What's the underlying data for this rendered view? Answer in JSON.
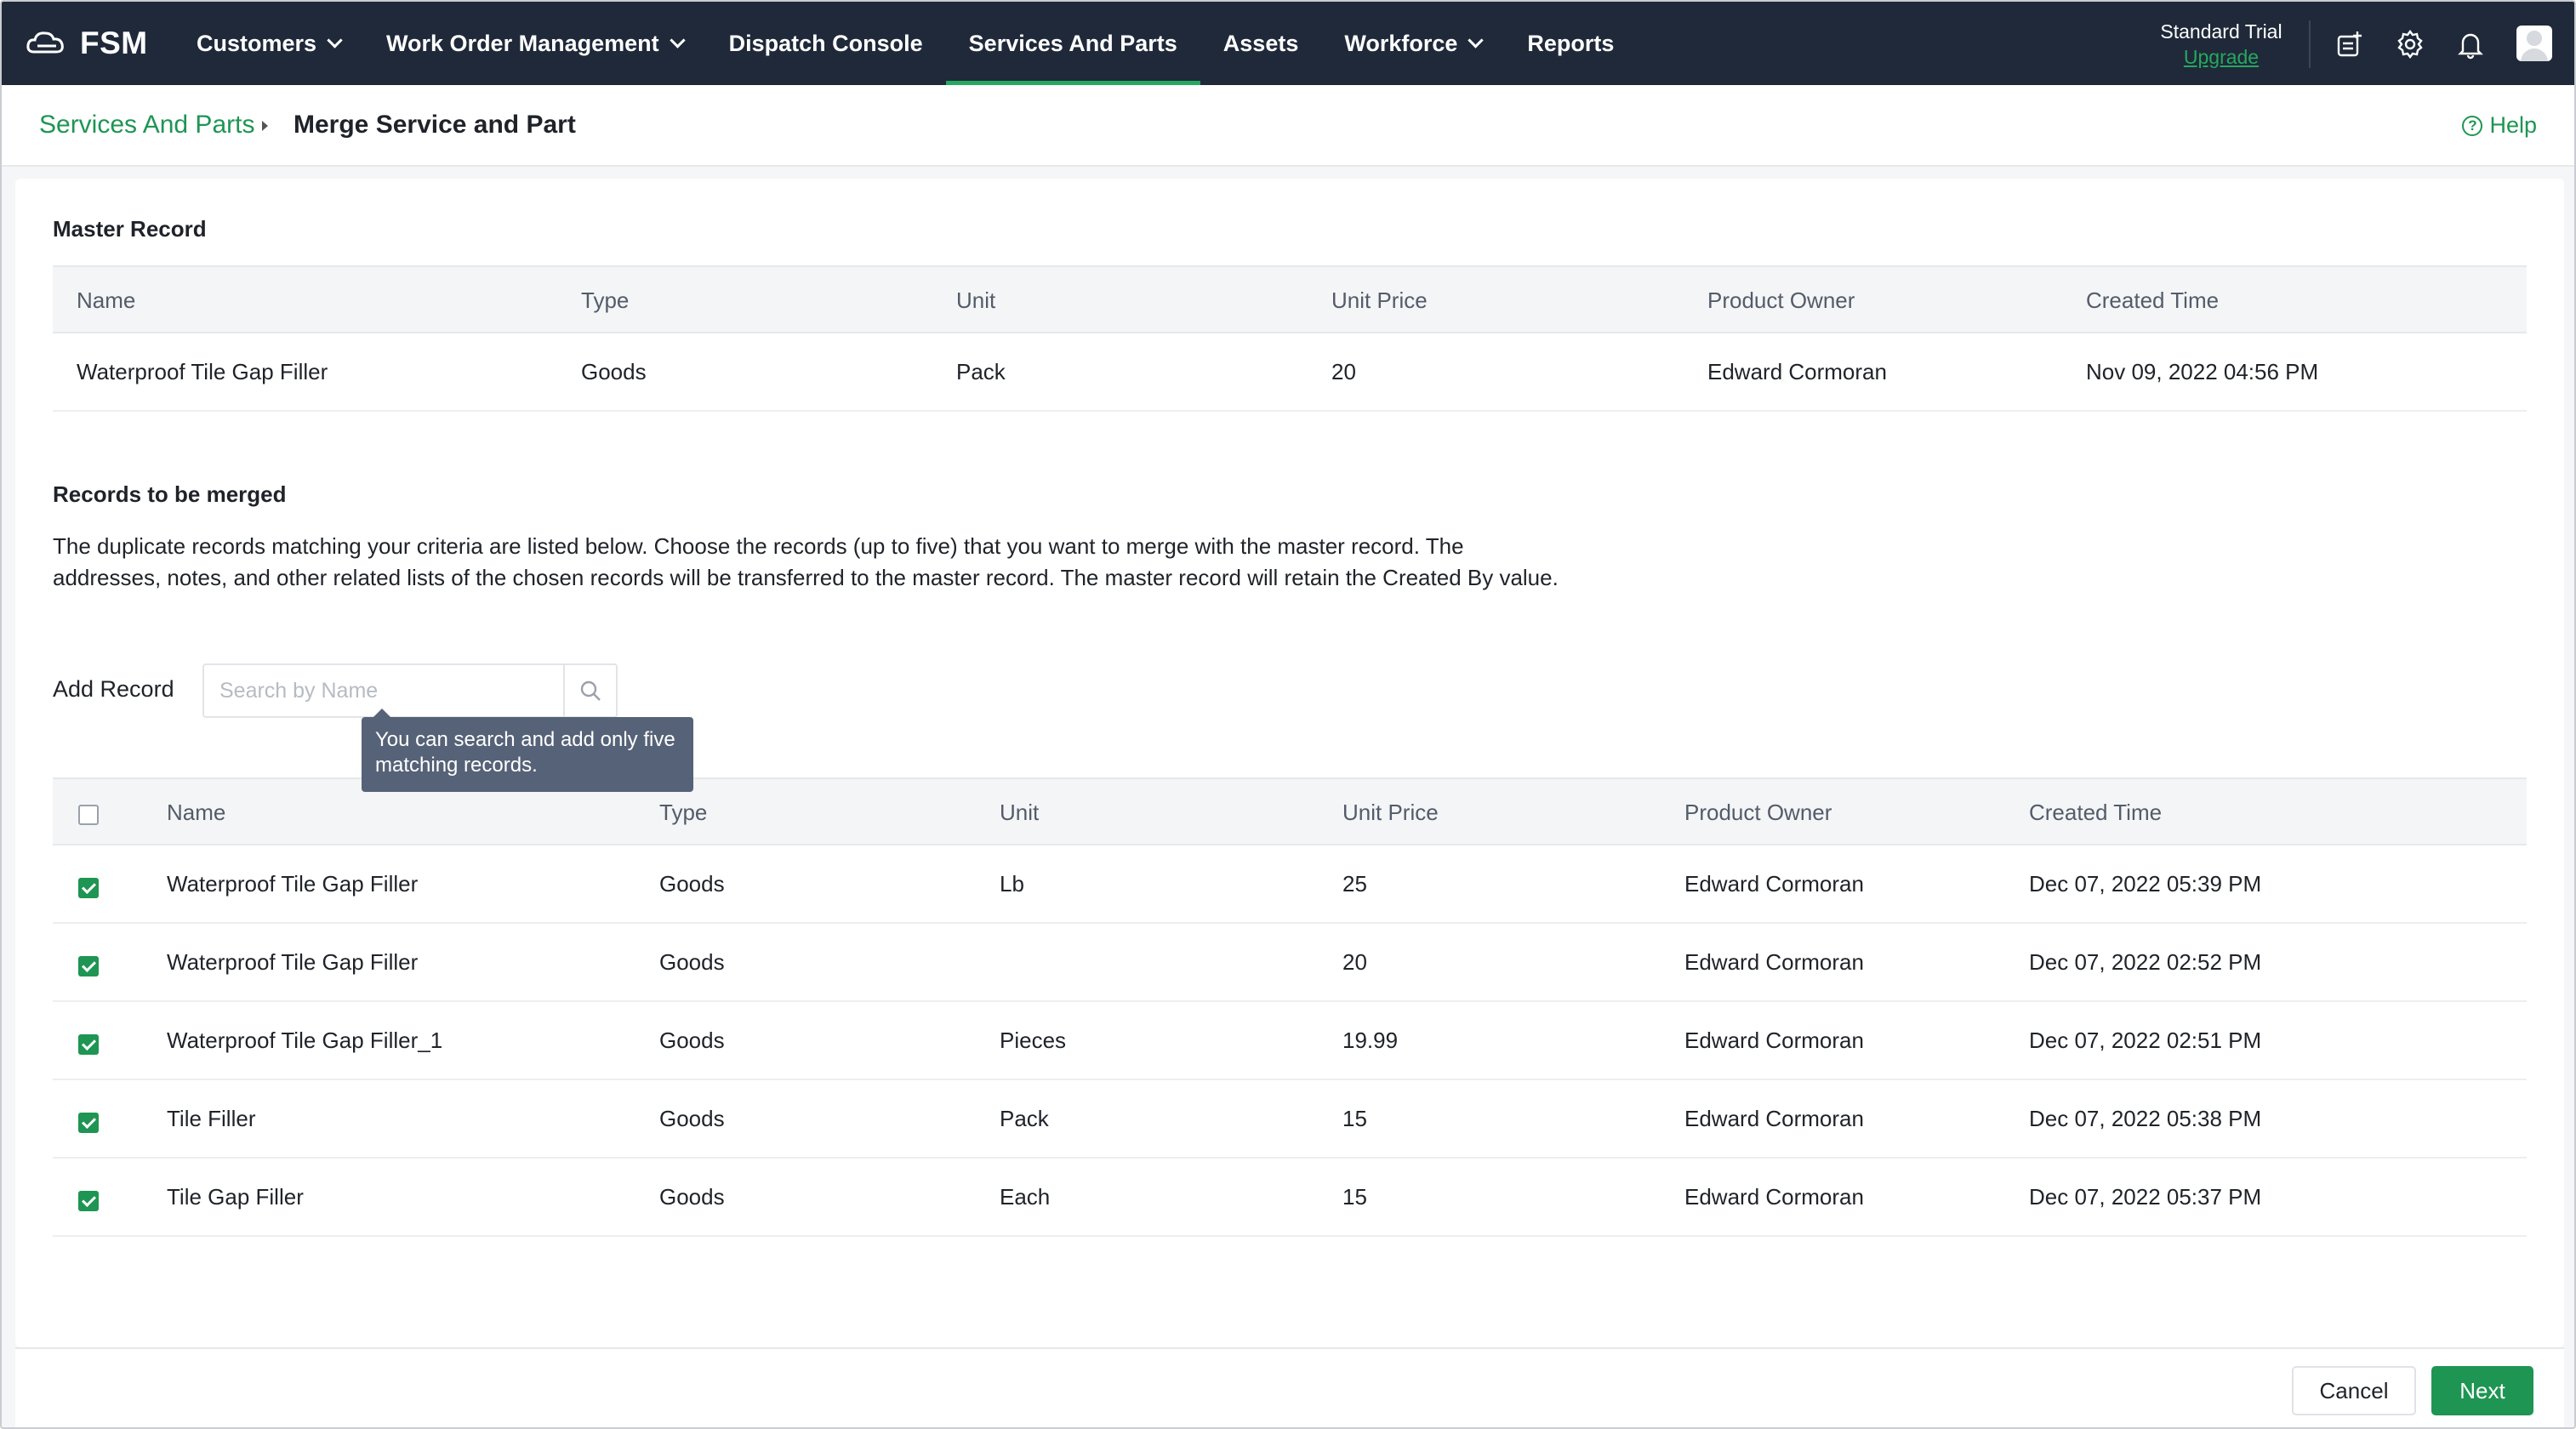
{
  "app": {
    "name": "FSM",
    "colors": {
      "topbar": "#1f2939",
      "accent": "#1e9553",
      "active_underline": "#26a85f",
      "tooltip": "#566277"
    }
  },
  "nav": {
    "items": [
      {
        "label": "Customers",
        "dropdown": true,
        "active": false
      },
      {
        "label": "Work Order Management",
        "dropdown": true,
        "active": false
      },
      {
        "label": "Dispatch Console",
        "dropdown": false,
        "active": false
      },
      {
        "label": "Services And Parts",
        "dropdown": false,
        "active": true
      },
      {
        "label": "Assets",
        "dropdown": false,
        "active": false
      },
      {
        "label": "Workforce",
        "dropdown": true,
        "active": false
      },
      {
        "label": "Reports",
        "dropdown": false,
        "active": false
      }
    ]
  },
  "account": {
    "plan": "Standard Trial",
    "upgrade_label": "Upgrade",
    "icons": [
      "new-record-icon",
      "gear-icon",
      "bell-icon",
      "avatar"
    ]
  },
  "breadcrumb": {
    "parent": "Services And Parts",
    "current": "Merge Service and Part"
  },
  "help_label": "Help",
  "master": {
    "title": "Master Record",
    "columns": [
      "Name",
      "Type",
      "Unit",
      "Unit Price",
      "Product Owner",
      "Created Time"
    ],
    "row": [
      "Waterproof Tile Gap Filler",
      "Goods",
      "Pack",
      "20",
      "Edward Cormoran",
      "Nov 09, 2022 04:56 PM"
    ]
  },
  "merge": {
    "title": "Records to be merged",
    "description_line1": "The duplicate records matching your criteria are listed below. Choose the records (up to five) that you want to merge with the master record. The",
    "description_line2": "addresses, notes, and other related lists of the chosen records will be transferred to the master record. The master record will retain the Created By value.",
    "add_record_label": "Add Record",
    "search_placeholder": "Search by Name",
    "tooltip": "You can search and add only five matching records.",
    "columns": [
      "Name",
      "Type",
      "Unit",
      "Unit Price",
      "Product Owner",
      "Created Time"
    ],
    "header_checked": false,
    "rows": [
      {
        "checked": true,
        "cells": [
          "Waterproof Tile Gap Filler",
          "Goods",
          "Lb",
          "25",
          "Edward Cormoran",
          "Dec 07, 2022 05:39 PM"
        ]
      },
      {
        "checked": true,
        "cells": [
          "Waterproof Tile Gap Filler",
          "Goods",
          "",
          "20",
          "Edward Cormoran",
          "Dec 07, 2022 02:52 PM"
        ]
      },
      {
        "checked": true,
        "cells": [
          "Waterproof Tile Gap Filler_1",
          "Goods",
          "Pieces",
          "19.99",
          "Edward Cormoran",
          "Dec 07, 2022 02:51 PM"
        ]
      },
      {
        "checked": true,
        "cells": [
          "Tile Filler",
          "Goods",
          "Pack",
          "15",
          "Edward Cormoran",
          "Dec 07, 2022 05:38 PM"
        ]
      },
      {
        "checked": true,
        "cells": [
          "Tile Gap Filler",
          "Goods",
          "Each",
          "15",
          "Edward Cormoran",
          "Dec 07, 2022 05:37 PM"
        ]
      }
    ]
  },
  "footer": {
    "cancel_label": "Cancel",
    "next_label": "Next"
  }
}
